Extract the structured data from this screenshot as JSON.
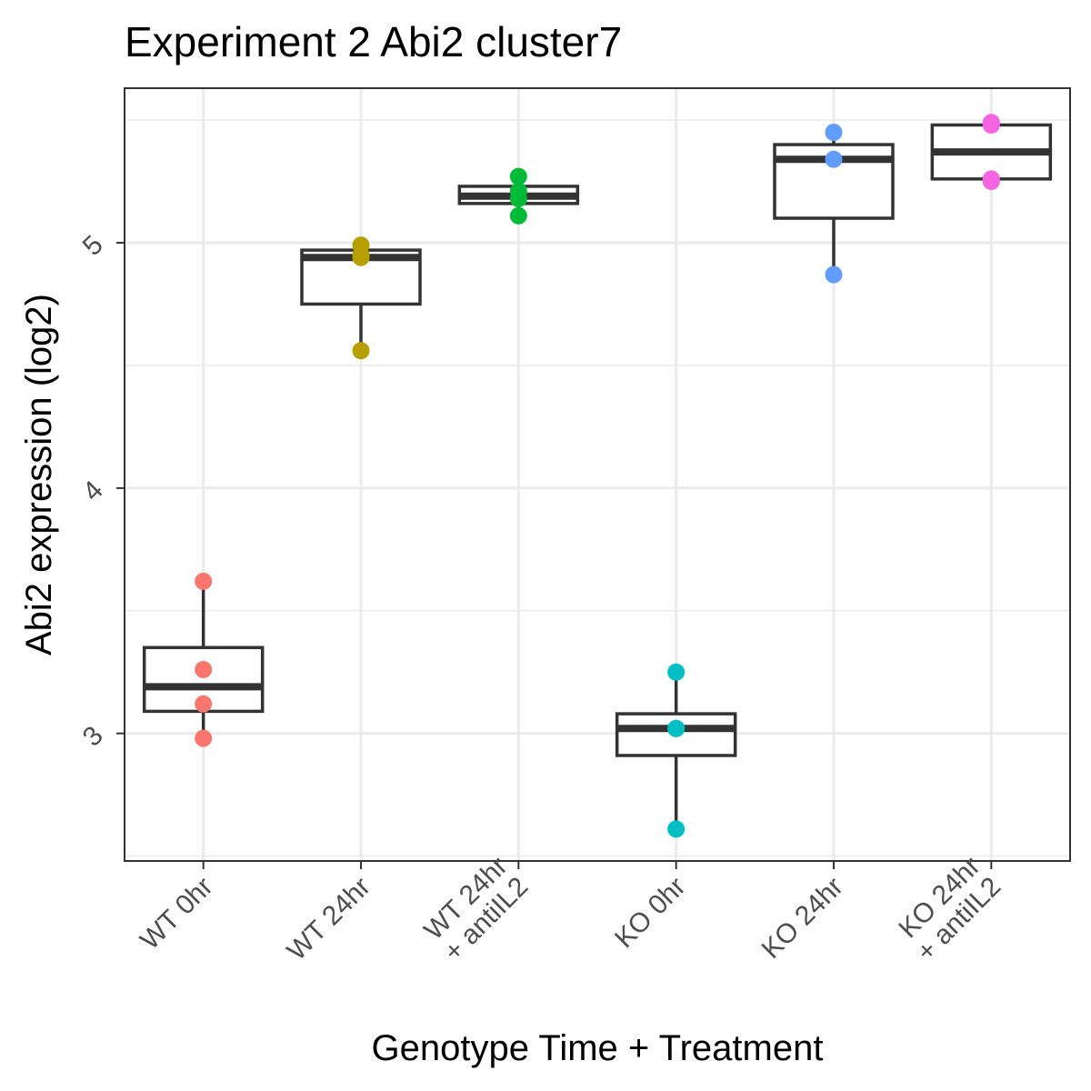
{
  "chart_data": {
    "type": "box",
    "title": "Experiment 2 Abi2 cluster7",
    "xlabel": "Genotype Time + Treatment",
    "ylabel": "Abi2 expression (log2)",
    "ylim": [
      2.48,
      5.63
    ],
    "yticks": [
      3,
      4,
      5
    ],
    "ytick_labels": [
      "3",
      "4",
      "5"
    ],
    "grid": true,
    "legend": "none",
    "categories": [
      [
        "WT 0hr"
      ],
      [
        "WT 24hr"
      ],
      [
        "WT 24hr",
        "+ antiIL2"
      ],
      [
        "KO 0hr"
      ],
      [
        "KO 24hr"
      ],
      [
        "KO 24hr",
        "+ antiIL2"
      ]
    ],
    "groups": [
      {
        "color": "#F8766D",
        "box": {
          "lower_whisker": 2.98,
          "q1": 3.09,
          "median": 3.19,
          "q3": 3.35,
          "upper_whisker": 3.62
        },
        "points": [
          3.62,
          3.26,
          3.12,
          2.98
        ]
      },
      {
        "color": "#B79F00",
        "box": {
          "lower_whisker": 4.56,
          "q1": 4.75,
          "median": 4.94,
          "q3": 4.97,
          "upper_whisker": 4.99
        },
        "points": [
          4.99,
          4.94,
          4.95,
          4.56
        ]
      },
      {
        "color": "#00BA38",
        "box": {
          "lower_whisker": 5.11,
          "q1": 5.16,
          "median": 5.19,
          "q3": 5.23,
          "upper_whisker": 5.27
        },
        "points": [
          5.27,
          5.21,
          5.18,
          5.11
        ]
      },
      {
        "color": "#00BFC4",
        "box": {
          "lower_whisker": 2.61,
          "q1": 2.91,
          "median": 3.02,
          "q3": 3.08,
          "upper_whisker": 3.25
        },
        "points": [
          3.25,
          3.02,
          3.02,
          2.61
        ]
      },
      {
        "color": "#619CFF",
        "box": {
          "lower_whisker": 4.87,
          "q1": 5.1,
          "median": 5.34,
          "q3": 5.4,
          "upper_whisker": 5.45
        },
        "points": [
          5.45,
          5.34,
          4.87
        ]
      },
      {
        "color": "#F564E3",
        "box": {
          "lower_whisker": 5.25,
          "q1": 5.26,
          "median": 5.37,
          "q3": 5.48,
          "upper_whisker": 5.49
        },
        "points": [
          5.49,
          5.48,
          5.26,
          5.25
        ]
      }
    ]
  }
}
